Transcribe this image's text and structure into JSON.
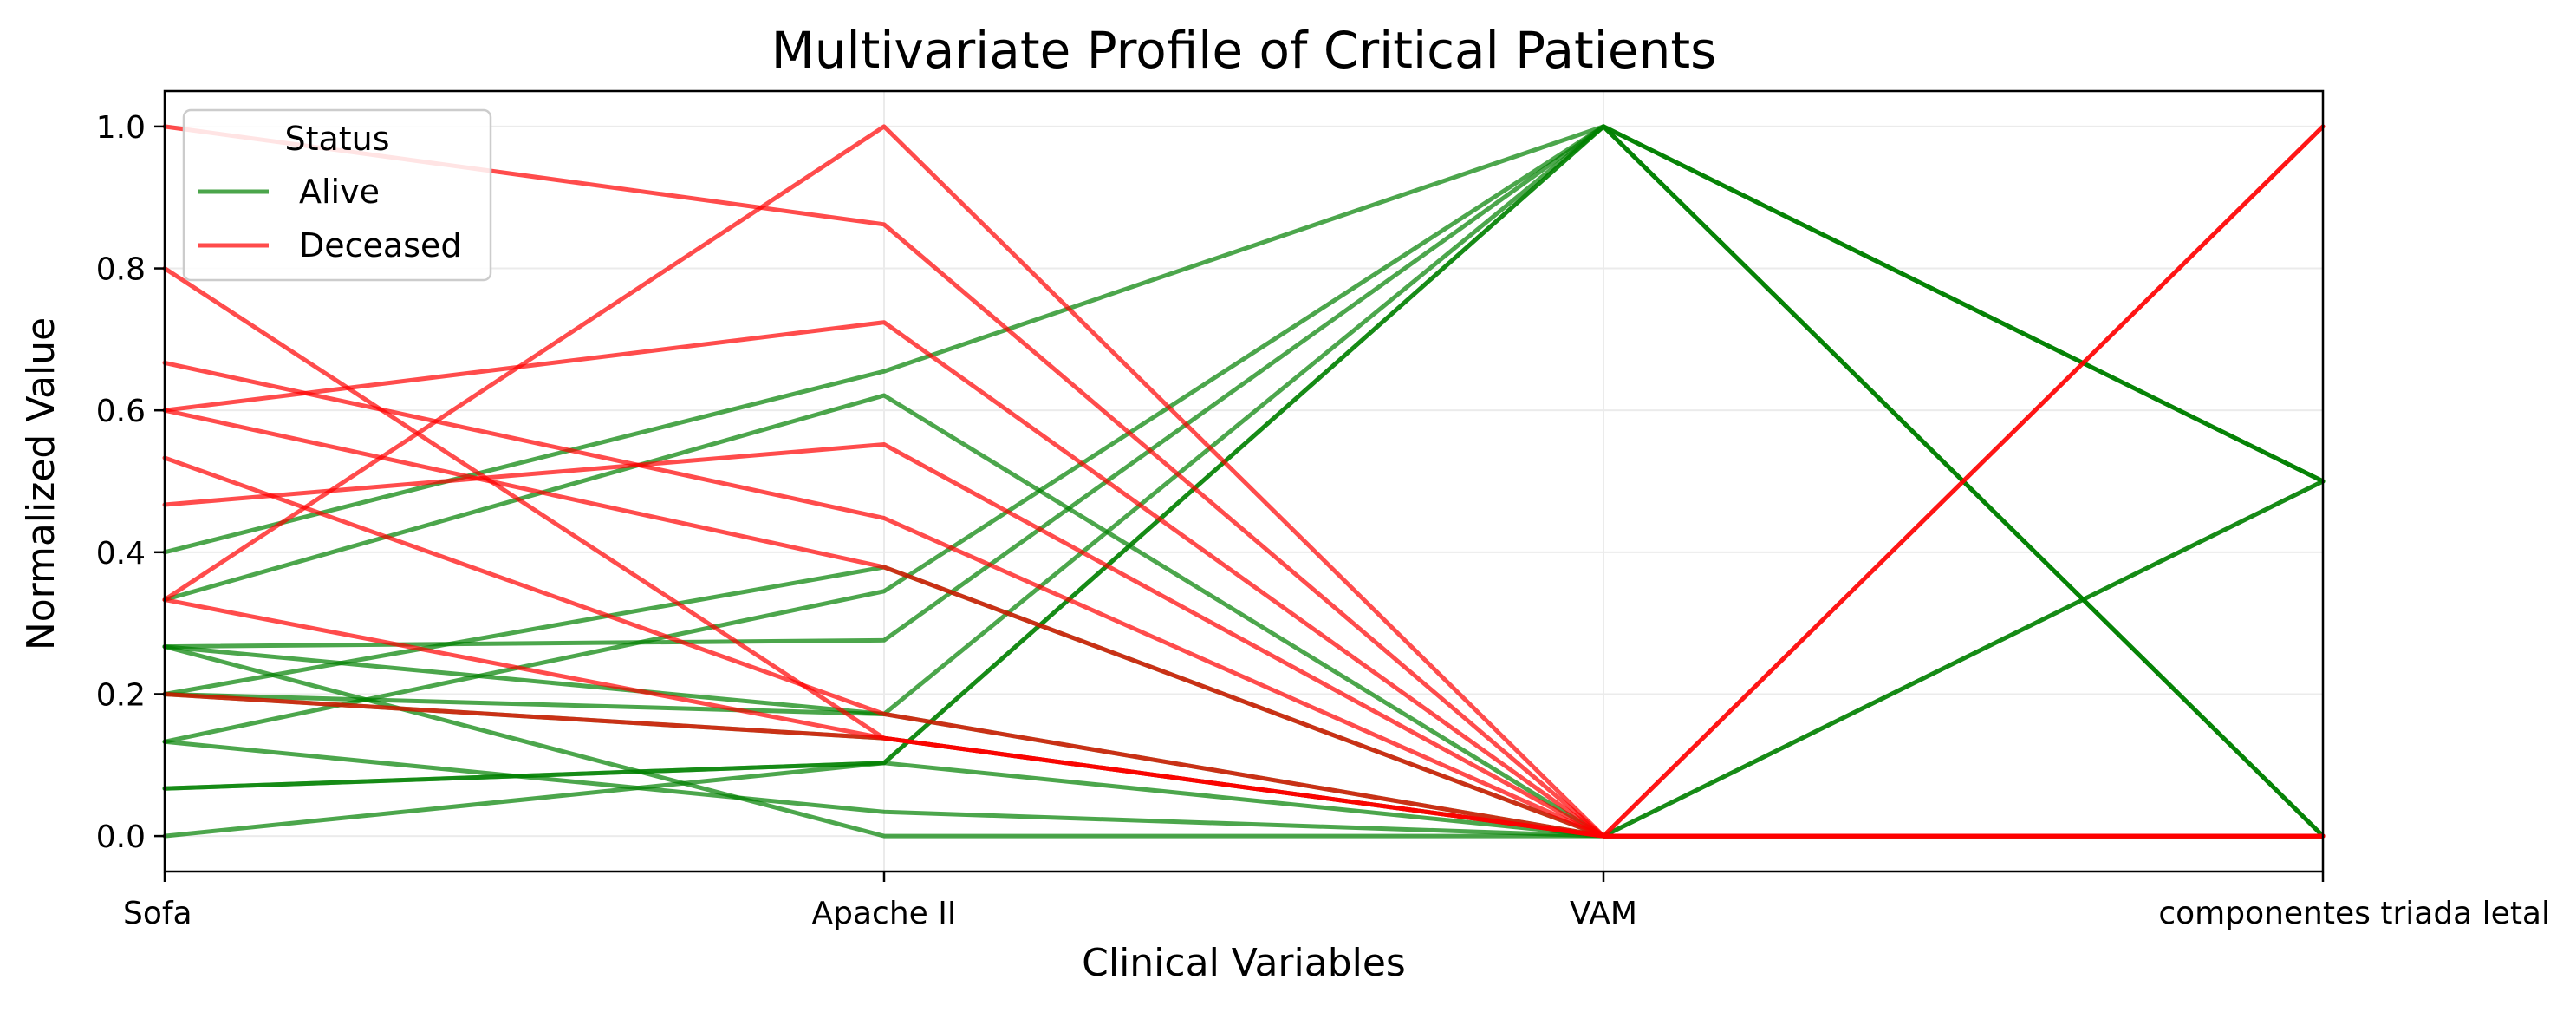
{
  "chart_data": {
    "type": "line",
    "subtype": "parallel-coordinates",
    "title": "Multivariate Profile of Critical Patients",
    "xlabel": "Clinical Variables",
    "ylabel": "Normalized Value",
    "categories": [
      "Sofa",
      "Apache II",
      "VAM",
      "componentes triada letal"
    ],
    "ylim": [
      -0.05,
      1.05
    ],
    "yticks": [
      "0.0",
      "0.2",
      "0.4",
      "0.6",
      "0.8",
      "1.0"
    ],
    "grid": true,
    "legend": {
      "title": "Status",
      "placement": "top-left",
      "entries": [
        {
          "label": "Alive",
          "color": "#008000"
        },
        {
          "label": "Deceased",
          "color": "#ff0000"
        }
      ]
    },
    "groups": [
      {
        "status": "Alive",
        "color": "#008000",
        "series": [
          {
            "values": [
              0.4,
              0.655,
              1.0,
              0.5
            ]
          },
          {
            "values": [
              0.333,
              0.621,
              0.0,
              0.5
            ]
          },
          {
            "values": [
              0.267,
              0.276,
              1.0,
              0.5
            ]
          },
          {
            "values": [
              0.2,
              0.379,
              0.0,
              0.5
            ]
          },
          {
            "values": [
              0.133,
              0.345,
              1.0,
              0.5
            ]
          },
          {
            "values": [
              0.267,
              0.172,
              1.0,
              0.0
            ]
          },
          {
            "values": [
              0.2,
              0.172,
              0.0,
              0.0
            ]
          },
          {
            "values": [
              0.2,
              0.138,
              0.0,
              0.0
            ]
          },
          {
            "values": [
              0.267,
              0.0,
              0.0,
              0.0
            ]
          },
          {
            "values": [
              0.133,
              0.034,
              0.0,
              0.0
            ]
          },
          {
            "values": [
              0.067,
              0.103,
              1.0,
              0.0
            ]
          },
          {
            "values": [
              0.067,
              0.103,
              1.0,
              0.0
            ]
          },
          {
            "values": [
              0.0,
              0.103,
              0.0,
              0.0
            ]
          }
        ]
      },
      {
        "status": "Deceased",
        "color": "#ff0000",
        "series": [
          {
            "values": [
              1.0,
              0.862,
              0.0,
              0.0
            ]
          },
          {
            "values": [
              0.333,
              1.0,
              0.0,
              1.0
            ]
          },
          {
            "values": [
              0.8,
              0.138,
              0.0,
              0.0
            ]
          },
          {
            "values": [
              0.667,
              0.448,
              0.0,
              0.0
            ]
          },
          {
            "values": [
              0.6,
              0.724,
              0.0,
              0.0
            ]
          },
          {
            "values": [
              0.6,
              0.379,
              0.0,
              1.0
            ]
          },
          {
            "values": [
              0.467,
              0.552,
              0.0,
              0.0
            ]
          },
          {
            "values": [
              0.533,
              0.172,
              0.0,
              0.0
            ]
          },
          {
            "values": [
              0.333,
              0.138,
              0.0,
              0.0
            ]
          },
          {
            "values": [
              0.2,
              0.138,
              0.0,
              0.0
            ]
          }
        ]
      }
    ]
  }
}
